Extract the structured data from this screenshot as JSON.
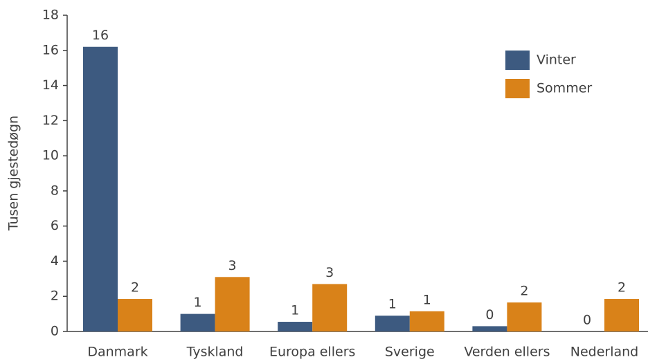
{
  "chart_data": {
    "type": "bar",
    "y_label": "Tusen gjestedøgn",
    "categories": [
      "Danmark",
      "Tyskland",
      "Europa ellers",
      "Sverige",
      "Verden ellers",
      "Nederland"
    ],
    "series": [
      {
        "name": "Vinter",
        "color": "#3d5a80",
        "values": [
          16.2,
          1.0,
          0.55,
          0.9,
          0.3,
          0
        ],
        "value_labels": [
          "16",
          "1",
          "1",
          "1",
          "0",
          "0"
        ]
      },
      {
        "name": "Sommer",
        "color": "#d98219",
        "values": [
          1.85,
          3.1,
          2.7,
          1.15,
          1.65,
          1.85
        ],
        "value_labels": [
          "2",
          "3",
          "3",
          "1",
          "2",
          "2"
        ]
      }
    ],
    "ylim": [
      0,
      18
    ],
    "yticks": [
      0,
      2,
      4,
      6,
      8,
      10,
      12,
      14,
      16,
      18
    ],
    "grid": false,
    "legend": "upper right"
  }
}
